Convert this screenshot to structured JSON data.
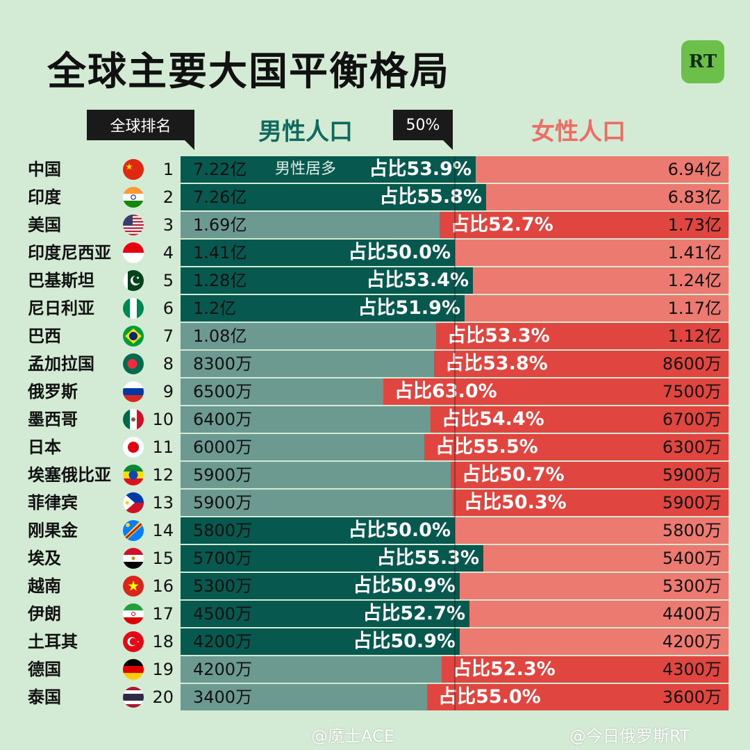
{
  "title": "全球主要大国平衡格局",
  "logo_text": "RT",
  "rank_tag": "全球排名",
  "half_tag": "50%",
  "male_header": "男性人口",
  "female_header": "女性人口",
  "male_note": "男性居多",
  "watermark_left": "@魔士ACE",
  "watermark_right": "@今日俄罗斯RT",
  "colors": {
    "male_dark": "#07594f",
    "male_light": "#6d9a90",
    "female_dark": "#e0463f",
    "female_light": "#ed7a70"
  },
  "chart_data": {
    "type": "bar",
    "rows": [
      {
        "country": "中国",
        "rank": "1",
        "male": "7.22亿",
        "female": "6.94亿",
        "pct_label": "占比53.9%",
        "share_percent": 53.9,
        "majority": "male",
        "flag": "flag-china"
      },
      {
        "country": "印度",
        "rank": "2",
        "male": "7.26亿",
        "female": "6.83亿",
        "pct_label": "占比55.8%",
        "share_percent": 55.8,
        "majority": "male",
        "flag": "flag-india"
      },
      {
        "country": "美国",
        "rank": "3",
        "male": "1.69亿",
        "female": "1.73亿",
        "pct_label": "占比52.7%",
        "share_percent": 52.7,
        "majority": "female",
        "flag": "flag-usa"
      },
      {
        "country": "印度尼西亚",
        "rank": "4",
        "male": "1.41亿",
        "female": "1.41亿",
        "pct_label": "占比50.0%",
        "share_percent": 50.0,
        "majority": "male",
        "flag": "flag-indonesia"
      },
      {
        "country": "巴基斯坦",
        "rank": "5",
        "male": "1.28亿",
        "female": "1.24亿",
        "pct_label": "占比53.4%",
        "share_percent": 53.4,
        "majority": "male",
        "flag": "flag-pakistan"
      },
      {
        "country": "尼日利亚",
        "rank": "6",
        "male": "1.2亿",
        "female": "1.17亿",
        "pct_label": "占比51.9%",
        "share_percent": 51.9,
        "majority": "male",
        "flag": "flag-nigeria"
      },
      {
        "country": "巴西",
        "rank": "7",
        "male": "1.08亿",
        "female": "1.12亿",
        "pct_label": "占比53.3%",
        "share_percent": 53.3,
        "majority": "female",
        "flag": "flag-brazil"
      },
      {
        "country": "孟加拉国",
        "rank": "8",
        "male": "8300万",
        "female": "8600万",
        "pct_label": "占比53.8%",
        "share_percent": 53.8,
        "majority": "female",
        "flag": "flag-bangladesh"
      },
      {
        "country": "俄罗斯",
        "rank": "9",
        "male": "6500万",
        "female": "7500万",
        "pct_label": "占比63.0%",
        "share_percent": 63.0,
        "majority": "female",
        "flag": "flag-russia"
      },
      {
        "country": "墨西哥",
        "rank": "10",
        "male": "6400万",
        "female": "6700万",
        "pct_label": "占比54.4%",
        "share_percent": 54.4,
        "majority": "female",
        "flag": "flag-mexico"
      },
      {
        "country": "日本",
        "rank": "11",
        "male": "6000万",
        "female": "6300万",
        "pct_label": "占比55.5%",
        "share_percent": 55.5,
        "majority": "female",
        "flag": "flag-japan"
      },
      {
        "country": "埃塞俄比亚",
        "rank": "12",
        "male": "5900万",
        "female": "5900万",
        "pct_label": "占比50.7%",
        "share_percent": 50.7,
        "majority": "female",
        "flag": "flag-ethiopia"
      },
      {
        "country": "菲律宾",
        "rank": "13",
        "male": "5900万",
        "female": "5900万",
        "pct_label": "占比50.3%",
        "share_percent": 50.3,
        "majority": "female",
        "flag": "flag-philippines"
      },
      {
        "country": "刚果金",
        "rank": "14",
        "male": "5800万",
        "female": "5800万",
        "pct_label": "占比50.0%",
        "share_percent": 50.0,
        "majority": "male",
        "flag": "flag-drc"
      },
      {
        "country": "埃及",
        "rank": "15",
        "male": "5700万",
        "female": "5400万",
        "pct_label": "占比55.3%",
        "share_percent": 55.3,
        "majority": "male",
        "flag": "flag-egypt"
      },
      {
        "country": "越南",
        "rank": "16",
        "male": "5300万",
        "female": "5300万",
        "pct_label": "占比50.9%",
        "share_percent": 50.9,
        "majority": "male",
        "flag": "flag-vietnam"
      },
      {
        "country": "伊朗",
        "rank": "17",
        "male": "4500万",
        "female": "4400万",
        "pct_label": "占比52.7%",
        "share_percent": 52.7,
        "majority": "male",
        "flag": "flag-iran"
      },
      {
        "country": "土耳其",
        "rank": "18",
        "male": "4200万",
        "female": "4200万",
        "pct_label": "占比50.9%",
        "share_percent": 50.9,
        "majority": "male",
        "flag": "flag-turkey"
      },
      {
        "country": "德国",
        "rank": "19",
        "male": "4200万",
        "female": "4300万",
        "pct_label": "占比52.3%",
        "share_percent": 52.3,
        "majority": "female",
        "flag": "flag-germany"
      },
      {
        "country": "泰国",
        "rank": "20",
        "male": "3400万",
        "female": "3600万",
        "pct_label": "占比55.0%",
        "share_percent": 55.0,
        "majority": "female",
        "flag": "flag-thailand"
      }
    ]
  }
}
